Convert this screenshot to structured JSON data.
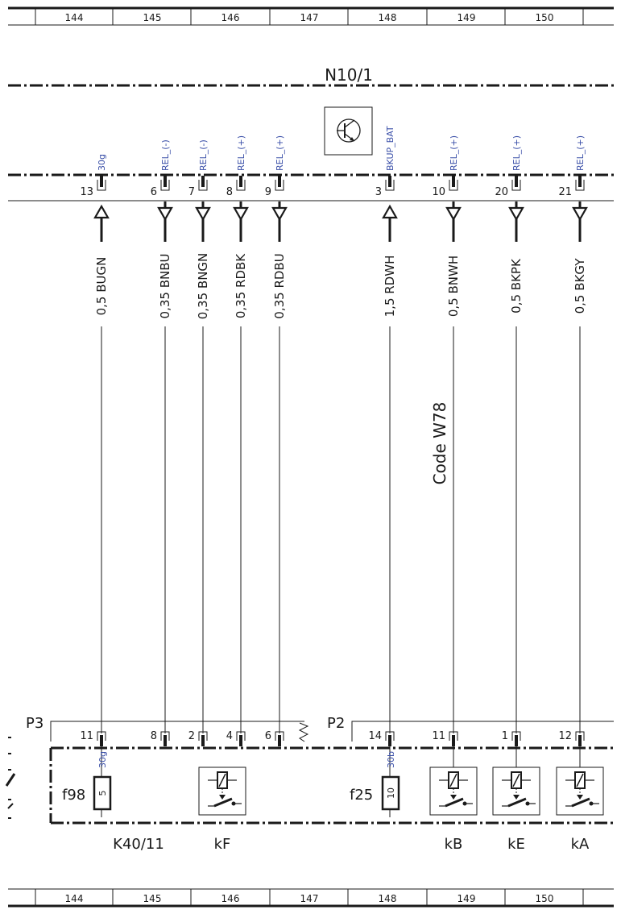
{
  "grid": {
    "columns": [
      "144",
      "145",
      "146",
      "147",
      "148",
      "149",
      "150"
    ]
  },
  "module": {
    "name": "N10/1"
  },
  "code_label": "Code W78",
  "top_pins": [
    {
      "pin": "13",
      "signal": "30g",
      "wire": "0,5 BUGN",
      "dir": "up"
    },
    {
      "pin": "6",
      "signal": "REL_(-)",
      "wire": "0,35 BNBU",
      "dir": "down"
    },
    {
      "pin": "7",
      "signal": "REL_(-)",
      "wire": "0,35 BNGN",
      "dir": "down"
    },
    {
      "pin": "8",
      "signal": "REL_(+)",
      "wire": "0,35 RDBK",
      "dir": "down"
    },
    {
      "pin": "9",
      "signal": "REL_(+)",
      "wire": "0,35 RDBU",
      "dir": "down"
    },
    {
      "pin": "3",
      "signal": "BKUP_BAT",
      "wire": "1,5 RDWH",
      "dir": "up"
    },
    {
      "pin": "10",
      "signal": "REL_(+)",
      "wire": "0,5 BNWH",
      "dir": "down"
    },
    {
      "pin": "20",
      "signal": "REL_(+)",
      "wire": "0,5 BKPK",
      "dir": "down"
    },
    {
      "pin": "21",
      "signal": "REL_(+)",
      "wire": "0,5 BKGY",
      "dir": "down"
    }
  ],
  "connectors": [
    {
      "name": "P3",
      "pins": [
        "11",
        "8",
        "2",
        "4",
        "6"
      ]
    },
    {
      "name": "P2",
      "pins": [
        "14",
        "11",
        "1",
        "12"
      ]
    }
  ],
  "fuses": [
    {
      "name": "f98",
      "value": "5",
      "signal": "30g"
    },
    {
      "name": "f25",
      "value": "10",
      "signal": "30b"
    }
  ],
  "relays": [
    {
      "name": "kF"
    },
    {
      "name": "kB"
    },
    {
      "name": "kE"
    },
    {
      "name": "kA"
    }
  ],
  "bottom_module": {
    "name": "K40/11"
  }
}
